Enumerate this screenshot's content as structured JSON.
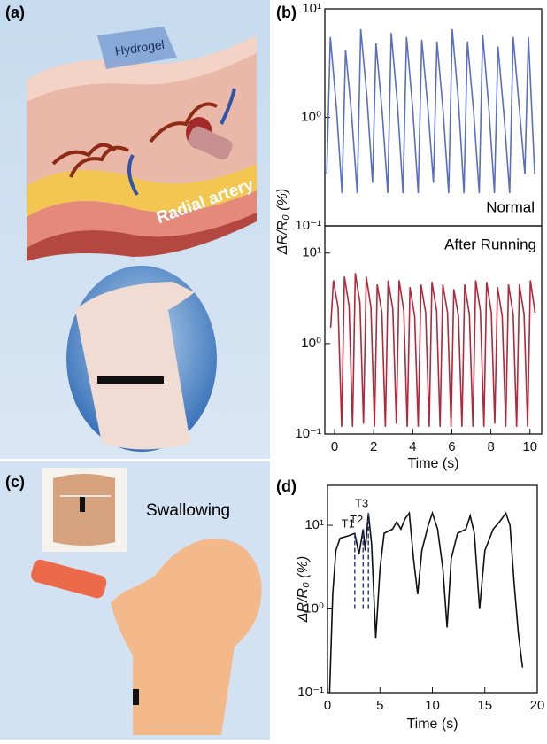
{
  "figure": {
    "panel_labels": [
      "(a)",
      "(b)",
      "(c)",
      "(d)"
    ],
    "illustrations": {
      "hydrogel": "Hydrogel",
      "radial_artery": "Radial artery",
      "swallowing": "Swallowing"
    }
  },
  "chart_data": [
    {
      "type": "line",
      "title": "Normal",
      "log_y": true,
      "y_label": "ΔR/R₀ (%)",
      "xlim": [
        -0.5,
        10.6
      ],
      "ylim": [
        0.1,
        10
      ],
      "yticks": [
        {
          "value": 0.1,
          "label": "10⁻¹"
        },
        {
          "value": 1,
          "label": "10⁰"
        },
        {
          "value": 10,
          "label": "10¹"
        }
      ],
      "x": [
        -0.4,
        -0.22,
        0.1,
        0.38,
        0.56,
        0.88,
        1.16,
        1.34,
        1.66,
        1.94,
        2.12,
        2.44,
        2.72,
        2.9,
        3.22,
        3.5,
        3.68,
        4.0,
        4.28,
        4.46,
        4.78,
        5.06,
        5.24,
        5.56,
        5.84,
        6.02,
        6.34,
        6.62,
        6.8,
        7.12,
        7.4,
        7.58,
        7.9,
        8.18,
        8.36,
        8.68,
        8.96,
        9.14,
        9.46,
        9.74,
        9.92,
        10.24
      ],
      "series": [
        {
          "name": "Normal",
          "color": "#5b6fc2",
          "values": [
            0.3,
            5.5,
            1.2,
            0.2,
            4.2,
            1.0,
            0.2,
            6.5,
            1.5,
            0.25,
            4.8,
            1.1,
            0.2,
            6.0,
            1.3,
            0.2,
            5.5,
            1.2,
            0.2,
            5.2,
            1.2,
            0.25,
            5.0,
            1.1,
            0.2,
            6.5,
            1.4,
            0.2,
            5.0,
            1.1,
            0.2,
            5.8,
            1.2,
            0.2,
            4.5,
            1.0,
            0.2,
            5.5,
            1.2,
            0.3,
            5.5,
            0.3
          ]
        }
      ]
    },
    {
      "type": "line",
      "title": "After Running",
      "log_y": true,
      "x_label": "Time (s)",
      "xlim": [
        -0.5,
        10.6
      ],
      "ylim": [
        0.1,
        20
      ],
      "xticks": [
        0,
        2,
        4,
        6,
        8,
        10
      ],
      "yticks": [
        {
          "value": 0.1,
          "label": "10⁻¹"
        },
        {
          "value": 1,
          "label": "10⁰"
        },
        {
          "value": 10,
          "label": "10¹"
        }
      ],
      "x": [
        -0.2,
        -0.06,
        0.18,
        0.36,
        0.5,
        0.74,
        0.92,
        1.06,
        1.3,
        1.48,
        1.62,
        1.86,
        2.04,
        2.18,
        2.42,
        2.6,
        2.74,
        2.98,
        3.16,
        3.3,
        3.54,
        3.72,
        3.86,
        4.1,
        4.28,
        4.42,
        4.66,
        4.84,
        4.98,
        5.22,
        5.4,
        5.54,
        5.78,
        5.96,
        6.1,
        6.34,
        6.52,
        6.66,
        6.9,
        7.08,
        7.22,
        7.46,
        7.64,
        7.78,
        8.02,
        8.2,
        8.34,
        8.58,
        8.76,
        8.9,
        9.14,
        9.32,
        9.46,
        9.7,
        9.88,
        10.02,
        10.26
      ],
      "series": [
        {
          "name": "After Running",
          "color": "#b3283a",
          "values": [
            1.5,
            5.0,
            2.5,
            0.12,
            5.5,
            2.6,
            0.12,
            6.0,
            2.8,
            0.13,
            5.5,
            2.5,
            0.12,
            4.5,
            2.2,
            0.12,
            5.0,
            2.4,
            0.13,
            5.0,
            2.3,
            0.12,
            4.2,
            2.0,
            0.12,
            4.5,
            2.2,
            0.12,
            4.8,
            2.3,
            0.12,
            4.5,
            2.2,
            0.12,
            4.0,
            2.0,
            0.12,
            4.5,
            2.1,
            0.12,
            5.0,
            2.3,
            0.12,
            4.8,
            2.2,
            0.13,
            4.2,
            2.0,
            0.12,
            4.5,
            2.1,
            0.12,
            4.5,
            2.1,
            0.12,
            5.0,
            2.2
          ]
        }
      ]
    },
    {
      "type": "line",
      "log_y": true,
      "y_label": "ΔR/R₀ (%)",
      "x_label": "Time (s)",
      "xlim": [
        0,
        20
      ],
      "ylim": [
        0.1,
        30
      ],
      "xticks": [
        0,
        5,
        10,
        15,
        20
      ],
      "yticks": [
        {
          "value": 0.1,
          "label": "10⁻¹"
        },
        {
          "value": 1,
          "label": "10⁰"
        },
        {
          "value": 10,
          "label": "10¹"
        }
      ],
      "x": [
        0.2,
        0.5,
        0.8,
        1.2,
        2.0,
        2.6,
        3.0,
        3.4,
        3.6,
        3.9,
        4.2,
        4.6,
        5.0,
        5.4,
        6.2,
        6.6,
        7.0,
        7.4,
        7.8,
        8.2,
        8.6,
        9.0,
        9.6,
        10.0,
        10.5,
        11.0,
        11.4,
        11.8,
        12.4,
        13.2,
        13.6,
        14.0,
        14.5,
        15.0,
        15.8,
        16.4,
        17.0,
        17.4,
        17.8,
        18.2,
        18.6
      ],
      "series": [
        {
          "name": "Swallowing",
          "color": "#111111",
          "values": [
            0.1,
            1.5,
            5,
            7,
            7.5,
            8,
            4.5,
            9,
            5,
            14,
            6,
            0.45,
            3,
            8,
            9,
            11,
            9,
            12,
            14,
            4,
            1.5,
            5,
            10,
            14,
            9,
            3,
            0.6,
            4,
            8,
            9,
            13,
            8,
            1,
            5,
            9,
            11,
            14,
            10,
            2,
            0.5,
            0.2
          ]
        }
      ],
      "annotations": [
        {
          "text": "T1",
          "x": 2.6,
          "y": 8,
          "y_from": 1,
          "color": "#2c3a8c"
        },
        {
          "text": "T2",
          "x": 3.4,
          "y": 9,
          "y_from": 1,
          "color": "#2c3a8c"
        },
        {
          "text": "T3",
          "x": 3.9,
          "y": 14,
          "y_from": 1,
          "color": "#2c3a8c"
        }
      ]
    }
  ]
}
